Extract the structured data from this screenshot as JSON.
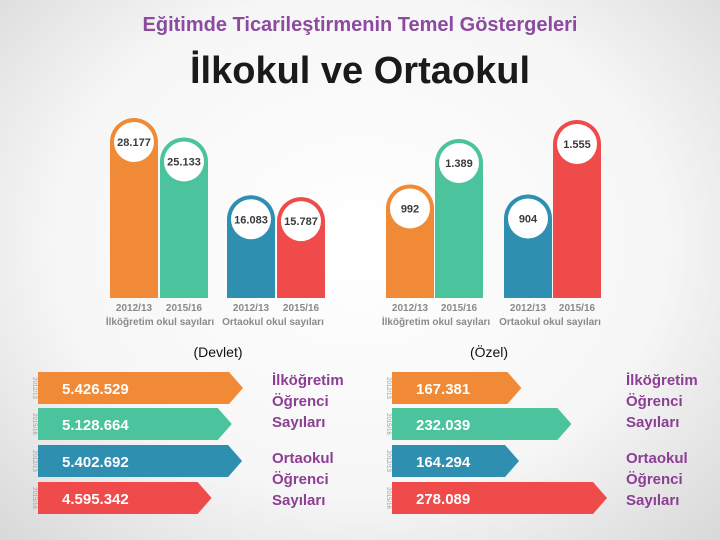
{
  "header": {
    "title": "Eğitimde Ticarileştirmenin Temel Göstergeleri",
    "subtitle": "İlkokul ve Ortaokul"
  },
  "colors": {
    "orange": "#f08a36",
    "green": "#4bc39c",
    "blue": "#2f8fb0",
    "red": "#ef4b4b",
    "label": "#8a8a8a",
    "side_label": "#8c3e94"
  },
  "chart_data": [
    {
      "type": "bar",
      "panel": "Devlet",
      "categories": [
        "2012/13",
        "2015/16",
        "2012/13",
        "2015/16"
      ],
      "groups": [
        "İlköğretim okul sayıları",
        "Ortaokul okul sayıları"
      ],
      "values": [
        28177,
        25133,
        16083,
        15787
      ],
      "value_labels": [
        "28.177",
        "25.133",
        "16.083",
        "15.787"
      ],
      "colors": [
        "#f08a36",
        "#4bc39c",
        "#2f8fb0",
        "#ef4b4b"
      ],
      "title": "(Devlet)"
    },
    {
      "type": "bar",
      "panel": "Özel",
      "categories": [
        "2012/13",
        "2015/16",
        "2012/13",
        "2015/16"
      ],
      "groups": [
        "İlköğretim okul sayıları",
        "Ortaokul okul sayıları"
      ],
      "values": [
        992,
        1389,
        904,
        1555
      ],
      "value_labels": [
        "992",
        "1.389",
        "904",
        "1.555"
      ],
      "colors": [
        "#f08a36",
        "#4bc39c",
        "#2f8fb0",
        "#ef4b4b"
      ],
      "title": "(Özel)"
    },
    {
      "type": "bar",
      "orientation": "horizontal",
      "panel": "Devlet",
      "categories": [
        "2012/13",
        "2015/16",
        "2012/13",
        "2015/16"
      ],
      "values": [
        5426529,
        5128664,
        5402692,
        4595342
      ],
      "value_labels": [
        "5.426.529",
        "5.128.664",
        "5.402.692",
        "4.595.342"
      ],
      "groups": [
        "İlköğretim Öğrenci Sayıları",
        "Ortaokul Öğrenci Sayıları"
      ],
      "colors": [
        "#f08a36",
        "#4bc39c",
        "#2f8fb0",
        "#ef4b4b"
      ]
    },
    {
      "type": "bar",
      "orientation": "horizontal",
      "panel": "Özel",
      "categories": [
        "2012/13",
        "2015/16",
        "2012/13",
        "2015/16"
      ],
      "values": [
        167381,
        232039,
        164294,
        278089
      ],
      "value_labels": [
        "167.381",
        "232.039",
        "164.294",
        "278.089"
      ],
      "groups": [
        "İlköğretim Öğrenci Sayıları",
        "Ortaokul Öğrenci Sayıları"
      ],
      "colors": [
        "#f08a36",
        "#4bc39c",
        "#2f8fb0",
        "#ef4b4b"
      ]
    }
  ]
}
